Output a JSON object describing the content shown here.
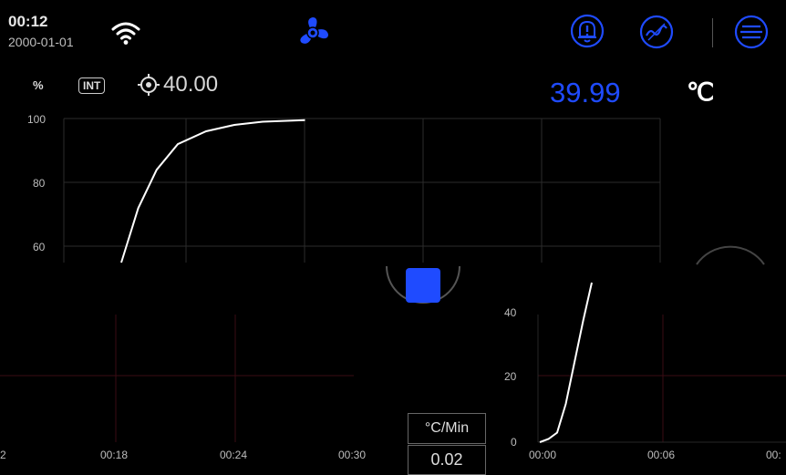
{
  "status_bar": {
    "time": "00:12",
    "date": "2000-01-01",
    "icons": [
      "wifi-icon",
      "fan-icon",
      "alarm-bell-icon",
      "signal-wave-icon",
      "menu-icon"
    ]
  },
  "readout": {
    "unit_percent": "%",
    "mode_badge": "INT",
    "setpoint": "40.00",
    "current_temp": "39.99",
    "temp_unit": "℃"
  },
  "controls": {
    "rate_label": "°C/Min",
    "rate_value": "0.02",
    "stop_button": "stop"
  },
  "colors": {
    "accent": "#1f4bff",
    "grid": "#2c2c2c",
    "grid_lower": "#3a0c14"
  },
  "chart_data": [
    {
      "type": "line",
      "ylabel": "%",
      "y_ticks": [
        "100",
        "80",
        "60"
      ],
      "ylim": [
        55,
        100
      ],
      "series": [
        {
          "values_xy": [
            [
              0,
              55
            ],
            [
              1.2,
              72
            ],
            [
              2.5,
              84
            ],
            [
              4,
              92
            ],
            [
              6,
              96
            ],
            [
              8,
              98
            ],
            [
              10,
              99
            ],
            [
              13,
              99.5
            ]
          ]
        }
      ]
    },
    {
      "type": "line",
      "x_ticks_left": [
        "2",
        "00:18",
        "00:24",
        "00:30"
      ],
      "y_ticks": [
        "40",
        "20",
        "0"
      ],
      "x_ticks_right": [
        "00:00",
        "00:06",
        "00:"
      ],
      "ylim": [
        0,
        50
      ],
      "series": [
        {
          "values_xy": [
            [
              0,
              0
            ],
            [
              0.5,
              1
            ],
            [
              1,
              3
            ],
            [
              1.5,
              12
            ],
            [
              2,
              25
            ],
            [
              2.5,
              38
            ],
            [
              3,
              50
            ]
          ]
        }
      ]
    }
  ]
}
